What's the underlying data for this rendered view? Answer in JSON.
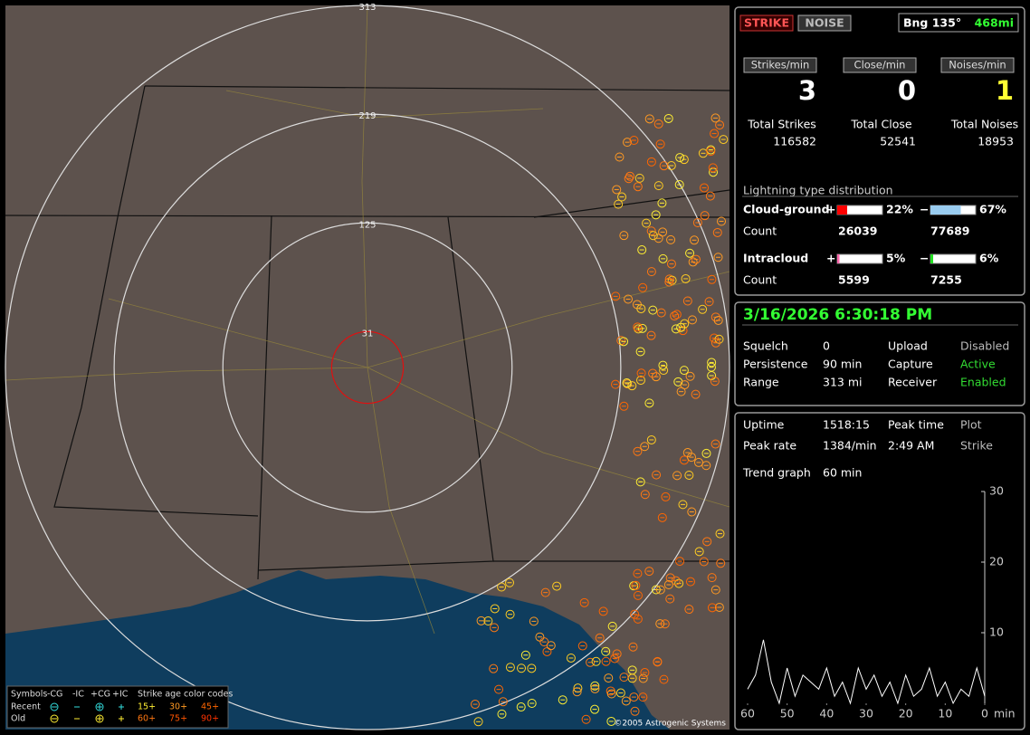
{
  "header": {
    "strike_button": "STRIKE",
    "noise_button": "NOISE",
    "bearing": "Bng 135°",
    "distance": "468mi"
  },
  "rates": [
    {
      "button": "Strikes/min",
      "value": 3,
      "total_label": "Total Strikes",
      "total": 116582
    },
    {
      "button": "Close/min",
      "value": 0,
      "total_label": "Total Close",
      "total": 52541
    },
    {
      "button": "Noises/min",
      "value": 1,
      "total_label": "Total Noises",
      "total": 18953
    }
  ],
  "distribution": {
    "title": "Lightning type distribution",
    "count_label": "Count",
    "rows": [
      {
        "label": "Cloud-ground",
        "plus": {
          "sign": "+",
          "value": 22,
          "value_label": "22%",
          "color": "#ff0000",
          "count": 26039
        },
        "minus": {
          "sign": "−",
          "value": 67,
          "value_label": "67%",
          "color": "#99ccf0",
          "count": 77689
        }
      },
      {
        "label": "Intracloud",
        "plus": {
          "sign": "+",
          "value": 5,
          "value_label": "5%",
          "color": "#ff66aa",
          "count": 5599
        },
        "minus": {
          "sign": "−",
          "value": 6,
          "value_label": "6%",
          "color": "#22dd22",
          "count": 7255
        }
      }
    ]
  },
  "clock": "3/16/2026 6:30:18 PM",
  "settings": {
    "rows": [
      [
        "Squelch",
        0,
        "Upload",
        "Disabled"
      ],
      [
        "Persistence",
        "90 min",
        "Capture",
        "Active"
      ],
      [
        "Range",
        "313 mi",
        "Receiver",
        "Enabled"
      ]
    ]
  },
  "stats": {
    "rows": [
      [
        "Uptime",
        "1518:15",
        "Peak time",
        "Plot"
      ],
      [
        "Peak rate",
        "1384/min",
        "2:49 AM",
        "Strike"
      ],
      [
        "Trend graph",
        "60 min"
      ]
    ]
  },
  "map": {
    "rings": [
      31,
      125,
      219,
      313
    ],
    "legend": {
      "header": [
        "Symbols",
        "-CG",
        "-IC",
        "+CG",
        "+IC",
        "Strike age color codes"
      ],
      "rows": [
        {
          "label": "Recent",
          "ages": [
            "15+",
            "30+",
            "45+"
          ],
          "colors": [
            "#ffee33",
            "#ff9922",
            "#ff6600"
          ]
        },
        {
          "label": "Old",
          "ages": [
            "60+",
            "75+",
            "90+"
          ],
          "colors": [
            "#ff7711",
            "#ff5500",
            "#ff3300"
          ]
        }
      ]
    },
    "copyright": "©2005 Astrogenic Systems"
  },
  "chart_data": {
    "type": "line",
    "x": [
      60,
      58,
      56,
      54,
      52,
      50,
      48,
      46,
      44,
      42,
      40,
      38,
      36,
      34,
      32,
      30,
      28,
      26,
      24,
      22,
      20,
      18,
      16,
      14,
      12,
      10,
      8,
      6,
      4,
      2,
      0
    ],
    "series": [
      {
        "color": "#ffffff",
        "values": [
          2,
          4,
          9,
          3,
          0,
          5,
          1,
          4,
          3,
          2,
          5,
          1,
          3,
          0,
          5,
          2,
          4,
          1,
          3,
          0,
          4,
          1,
          2,
          5,
          1,
          3,
          0,
          2,
          1,
          5,
          1
        ]
      }
    ],
    "xlim": [
      60,
      0
    ],
    "xticks": [
      60,
      50,
      40,
      30,
      20,
      10,
      0
    ],
    "ylim": [
      0,
      30
    ],
    "yticks": [
      10,
      20,
      30
    ],
    "x_unit": "min"
  }
}
